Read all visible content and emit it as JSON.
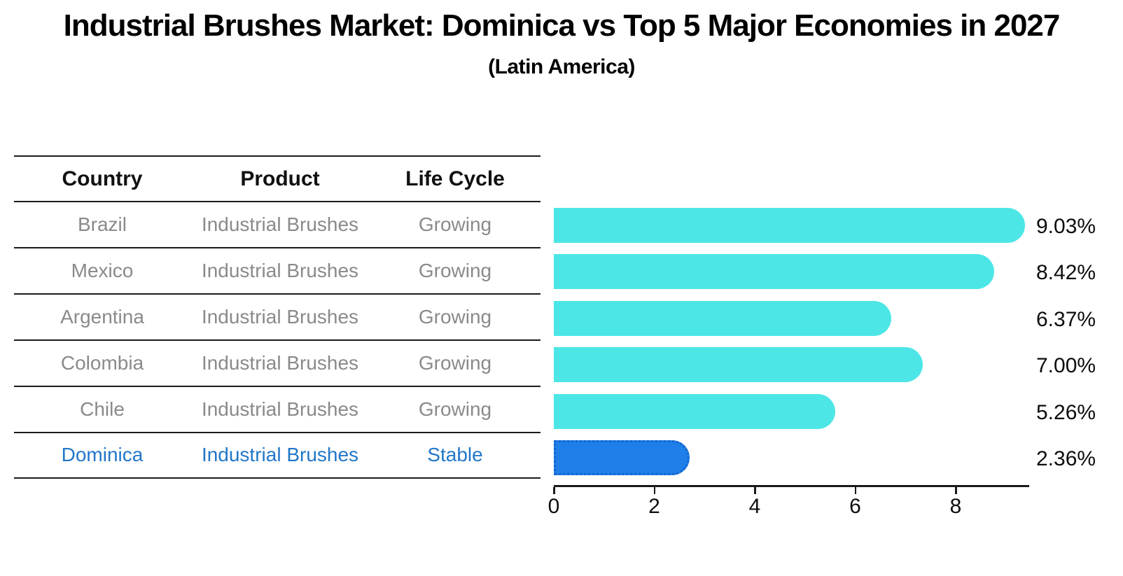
{
  "title": "Industrial Brushes Market: Dominica vs Top 5 Major Economies in 2027",
  "subtitle": "(Latin America)",
  "colors": {
    "bar_default": "#4DE6E6",
    "bar_highlight": "#1F7FE9",
    "bar_highlight_border": "#1465CE",
    "highlight_text": "#2277C8",
    "row_text": "#8a8a8a",
    "header_text": "#111111",
    "axis": "#1a1a1a"
  },
  "table": {
    "headers": [
      "Country",
      "Product",
      "Life Cycle"
    ],
    "rows": [
      {
        "country": "Brazil",
        "product": "Industrial Brushes",
        "life_cycle": "Growing",
        "highlight": false
      },
      {
        "country": "Mexico",
        "product": "Industrial Brushes",
        "life_cycle": "Growing",
        "highlight": false
      },
      {
        "country": "Argentina",
        "product": "Industrial Brushes",
        "life_cycle": "Growing",
        "highlight": false
      },
      {
        "country": "Colombia",
        "product": "Industrial Brushes",
        "life_cycle": "Growing",
        "highlight": false
      },
      {
        "country": "Chile",
        "product": "Industrial Brushes",
        "life_cycle": "Growing",
        "highlight": false
      },
      {
        "country": "Dominica",
        "product": "Industrial Brushes",
        "life_cycle": "Stable",
        "highlight": true
      }
    ]
  },
  "chart_data": {
    "type": "bar",
    "orientation": "horizontal",
    "title": "Industrial Brushes Market: Dominica vs Top 5 Major Economies in 2027",
    "subtitle": "(Latin America)",
    "categories": [
      "Brazil",
      "Mexico",
      "Argentina",
      "Colombia",
      "Chile",
      "Dominica"
    ],
    "values": [
      9.03,
      8.42,
      6.37,
      7.0,
      5.26,
      2.36
    ],
    "value_labels": [
      "9.03%",
      "8.42%",
      "6.37%",
      "7.00%",
      "5.26%",
      "2.36%"
    ],
    "unit": "%",
    "xlim": [
      0,
      9.46
    ],
    "x_ticks": [
      0,
      2,
      4,
      6,
      8
    ],
    "grid": false,
    "legend": false,
    "highlight_index": 5,
    "highlight_category": "Dominica",
    "bar_style": "rounded-right-cap, highlighted bar has dotted border"
  }
}
